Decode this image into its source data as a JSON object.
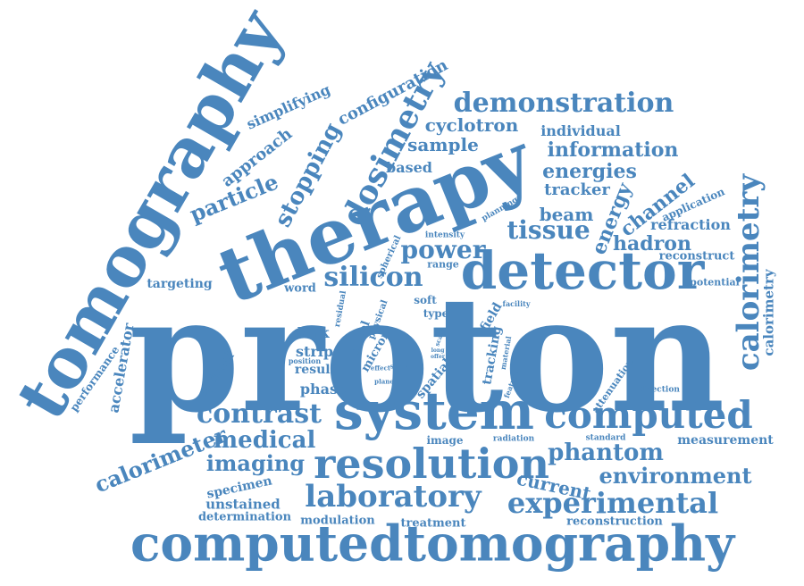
{
  "color": "#4a86bd",
  "words": [
    {
      "id": "proton",
      "text": "proton"
    },
    {
      "id": "computedtomography",
      "text": "computedtomography"
    },
    {
      "id": "tomography",
      "text": "tomography"
    },
    {
      "id": "therapy",
      "text": "therapy"
    },
    {
      "id": "detector",
      "text": "detector"
    },
    {
      "id": "system",
      "text": "system"
    },
    {
      "id": "resolution",
      "text": "resolution"
    },
    {
      "id": "laboratory",
      "text": "laboratory"
    },
    {
      "id": "computed",
      "text": "computed"
    },
    {
      "id": "tomography2",
      "text": "tomography"
    },
    {
      "id": "calorimetry",
      "text": "calorimetry"
    },
    {
      "id": "experimental",
      "text": "experimental"
    },
    {
      "id": "demonstration",
      "text": "demonstration"
    },
    {
      "id": "dosimetry",
      "text": "dosimetry"
    },
    {
      "id": "silicon",
      "text": "silicon"
    },
    {
      "id": "contrast",
      "text": "contrast"
    },
    {
      "id": "medical",
      "text": "medical"
    },
    {
      "id": "imaging",
      "text": "imaging"
    },
    {
      "id": "phantom",
      "text": "phantom"
    },
    {
      "id": "environment",
      "text": "environment"
    },
    {
      "id": "tissue",
      "text": "tissue"
    },
    {
      "id": "power",
      "text": "power"
    },
    {
      "id": "calorimeter",
      "text": "calorimeter"
    },
    {
      "id": "information",
      "text": "information"
    },
    {
      "id": "energies",
      "text": "energies"
    },
    {
      "id": "stopping",
      "text": "stopping"
    },
    {
      "id": "particle",
      "text": "particle"
    },
    {
      "id": "configuration",
      "text": "configuration"
    },
    {
      "id": "cyclotron",
      "text": "cyclotron"
    },
    {
      "id": "sample",
      "text": "sample"
    },
    {
      "id": "hadron",
      "text": "hadron"
    },
    {
      "id": "beam",
      "text": "beam"
    },
    {
      "id": "energy",
      "text": "energy"
    },
    {
      "id": "channel",
      "text": "channel"
    },
    {
      "id": "current",
      "text": "current"
    },
    {
      "id": "tracker",
      "text": "tracker"
    },
    {
      "id": "approach",
      "text": "approach"
    },
    {
      "id": "simplifying",
      "text": "simplifying"
    },
    {
      "id": "based",
      "text": "based"
    },
    {
      "id": "individual",
      "text": "individual"
    },
    {
      "id": "refraction",
      "text": "refraction"
    },
    {
      "id": "application",
      "text": "application"
    },
    {
      "id": "reconstruct",
      "text": "reconstruct"
    },
    {
      "id": "calorimetry2",
      "text": "calorimetry"
    },
    {
      "id": "potential",
      "text": "potential"
    },
    {
      "id": "accelerator",
      "text": "accelerator"
    },
    {
      "id": "performance",
      "text": "performance"
    },
    {
      "id": "optimal",
      "text": "optimal"
    },
    {
      "id": "targeting",
      "text": "targeting"
    },
    {
      "id": "word",
      "text": "word"
    },
    {
      "id": "soft",
      "text": "soft"
    },
    {
      "id": "range",
      "text": "range"
    },
    {
      "id": "intensity",
      "text": "intensity"
    },
    {
      "id": "spherical",
      "text": "spherical"
    },
    {
      "id": "planning",
      "text": "planning"
    },
    {
      "id": "dark",
      "text": "dark"
    },
    {
      "id": "strip",
      "text": "strip"
    },
    {
      "id": "result",
      "text": "result"
    },
    {
      "id": "phase",
      "text": "phase"
    },
    {
      "id": "position",
      "text": "position"
    },
    {
      "id": "residual",
      "text": "residual"
    },
    {
      "id": "novel",
      "text": "novel"
    },
    {
      "id": "micron",
      "text": "micron"
    },
    {
      "id": "physical",
      "text": "physical"
    },
    {
      "id": "type",
      "text": "type"
    },
    {
      "id": "field",
      "text": "field"
    },
    {
      "id": "tracking",
      "text": "tracking"
    },
    {
      "id": "spatial",
      "text": "spatial"
    },
    {
      "id": "material",
      "text": "material"
    },
    {
      "id": "facility",
      "text": "facility"
    },
    {
      "id": "feature",
      "text": "feature"
    },
    {
      "id": "attenuation",
      "text": "attenuation"
    },
    {
      "id": "direction",
      "text": "direction"
    },
    {
      "id": "measurement",
      "text": "measurement"
    },
    {
      "id": "standard",
      "text": "standard"
    },
    {
      "id": "radiation",
      "text": "radiation"
    },
    {
      "id": "image",
      "text": "image"
    },
    {
      "id": "specimen",
      "text": "specimen"
    },
    {
      "id": "unstained",
      "text": "unstained"
    },
    {
      "id": "determination",
      "text": "determination"
    },
    {
      "id": "modulation",
      "text": "modulation"
    },
    {
      "id": "treatment",
      "text": "treatment"
    },
    {
      "id": "reconstruction",
      "text": "reconstruction"
    },
    {
      "id": "plane",
      "text": "plane"
    },
    {
      "id": "effect",
      "text": "effect"
    },
    {
      "id": "spread",
      "text": "spread"
    },
    {
      "id": "scale",
      "text": "scale"
    },
    {
      "id": "long",
      "text": "long"
    },
    {
      "id": "offer",
      "text": "offer"
    }
  ]
}
